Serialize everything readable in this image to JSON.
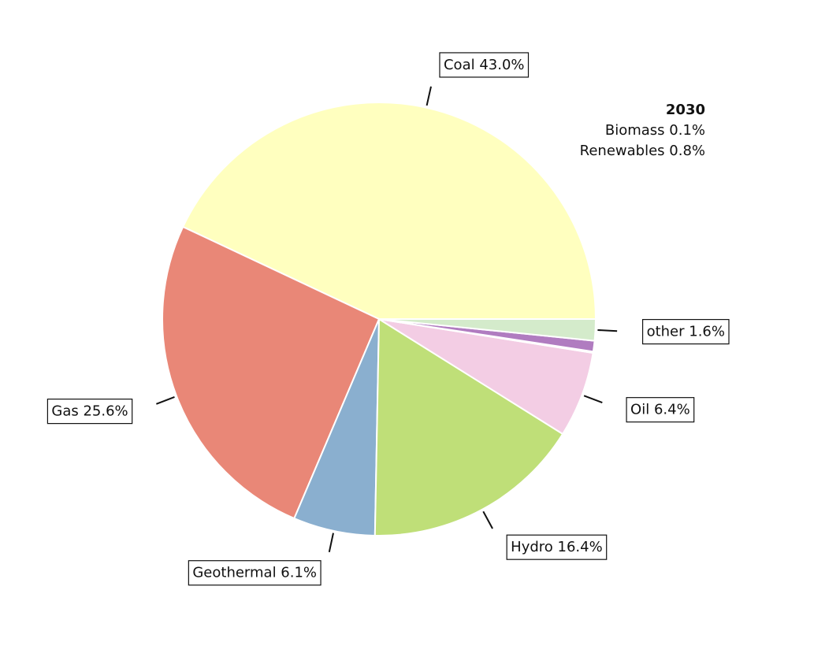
{
  "chart_data": {
    "type": "pie",
    "title": "2030",
    "labels": [
      "Coal 43.0%",
      "Gas 25.6%",
      "Geothermal 6.1%",
      "Hydro 16.4%",
      "Oil 6.4%",
      null,
      null,
      "other 1.6%"
    ],
    "values": [
      43.0,
      25.6,
      6.1,
      16.4,
      6.4,
      0.1,
      0.8,
      1.6
    ],
    "colors": [
      "#ffffbf",
      "#e98777",
      "#8aafcf",
      "#bfdf78",
      "#f3cde4",
      "#c9a3d6",
      "#b07cc0",
      "#d4ebcb"
    ],
    "note": [
      "Biomass 0.1%",
      "Renewables 0.8%"
    ]
  }
}
